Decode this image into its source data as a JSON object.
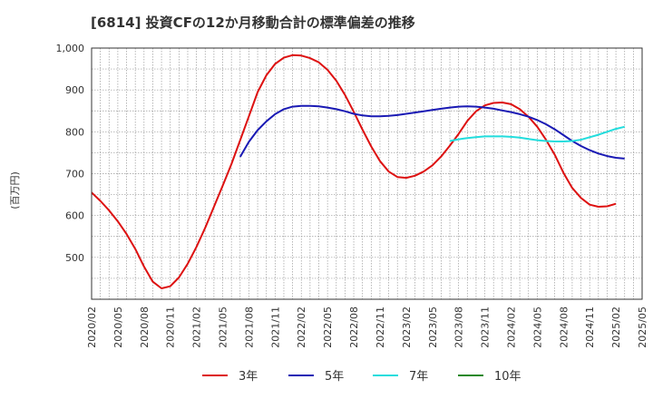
{
  "chart_data": {
    "type": "line",
    "title": "[6814]  投資CFの12か月移動合計の標準偏差の推移",
    "ylabel": "(百万円)",
    "xlabel": "",
    "ylim": [
      400,
      1000
    ],
    "yticks": [
      "500",
      "600",
      "700",
      "800",
      "900",
      "1,000"
    ],
    "xticks": [
      "2020/02",
      "2020/05",
      "2020/08",
      "2020/11",
      "2021/02",
      "2021/05",
      "2021/08",
      "2021/11",
      "2022/02",
      "2022/05",
      "2022/08",
      "2022/11",
      "2023/02",
      "2023/05",
      "2023/08",
      "2023/11",
      "2024/02",
      "2024/05",
      "2024/08",
      "2024/11",
      "2025/02",
      "2025/05"
    ],
    "grid": true,
    "legend_position": "bottom",
    "series": [
      {
        "name": "3年",
        "color": "#dd1111",
        "start": "2020/02",
        "values": [
          655,
          635,
          612,
          586,
          556,
          520,
          478,
          442,
          426,
          431,
          452,
          485,
          525,
          571,
          621,
          671,
          723,
          780,
          837,
          895,
          935,
          962,
          977,
          983,
          982,
          976,
          966,
          948,
          922,
          888,
          848,
          805,
          765,
          730,
          705,
          692,
          690,
          695,
          705,
          720,
          741,
          767,
          795,
          826,
          849,
          863,
          869,
          870,
          866,
          854,
          836,
          812,
          781,
          745,
          702,
          666,
          642,
          626,
          621,
          622,
          628
        ]
      },
      {
        "name": "5年",
        "color": "#1a1ab4",
        "start": "2021/07",
        "values": [
          740,
          776,
          804,
          825,
          842,
          854,
          860,
          862,
          862,
          861,
          858,
          854,
          849,
          843,
          839,
          837,
          837,
          838,
          840,
          843,
          846,
          849,
          852,
          855,
          858,
          860,
          861,
          860,
          858,
          855,
          851,
          847,
          842,
          836,
          828,
          818,
          806,
          792,
          778,
          766,
          756,
          748,
          742,
          738,
          736
        ]
      },
      {
        "name": "7年",
        "color": "#22dddd",
        "start": "2023/07",
        "values": [
          778,
          782,
          785,
          787,
          789,
          789,
          789,
          788,
          786,
          783,
          780,
          778,
          777,
          777,
          778,
          781,
          787,
          793,
          800,
          807,
          812
        ]
      },
      {
        "name": "10年",
        "color": "#228822",
        "start": "2025/02",
        "values": []
      }
    ]
  }
}
